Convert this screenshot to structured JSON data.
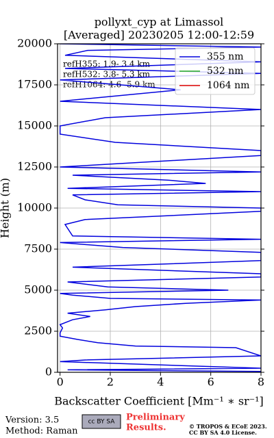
{
  "chart_data": {
    "type": "line",
    "title": [
      "pollyxt_cyp at Limassol",
      "[Averaged] 20230205 12:00-12:59"
    ],
    "x_label": "Backscatter Coefficient [Mm⁻¹ ∗ sr⁻¹]",
    "y_label": "Height (m)",
    "xlim": [
      -0.1,
      8
    ],
    "ylim": [
      0,
      20000
    ],
    "xticks": [
      0,
      2,
      4,
      6,
      8
    ],
    "yticks": [
      0,
      2500,
      5000,
      7500,
      10000,
      12500,
      15000,
      17500,
      20000
    ],
    "grid": true,
    "legend": "upper right",
    "heights": [
      50,
      150,
      250,
      650,
      750,
      1000,
      1500,
      1600,
      1800,
      2000,
      2200,
      2400,
      2700,
      2900,
      3200,
      3400,
      3600,
      3800,
      4000,
      4200,
      4400,
      4500,
      4700,
      4800,
      5000,
      5200,
      5500,
      5800,
      6000,
      6400,
      6800,
      7100,
      7300,
      7600,
      7900,
      8100,
      8300,
      9000,
      9300,
      9800,
      10000,
      10200,
      10500,
      10800,
      11000,
      11200,
      11500,
      11700,
      12000,
      12200,
      12500,
      13200,
      13500,
      14000,
      14500,
      15000,
      15500,
      16000,
      16500,
      17200,
      17800,
      18200,
      18500,
      18900,
      19300,
      19600,
      19800,
      20000
    ],
    "series": [
      {
        "name": "355 nm",
        "color": "#0000dd",
        "values": [
          8,
          0.3,
          8,
          0,
          1,
          8,
          7,
          3,
          1.5,
          0.7,
          0,
          0,
          0.1,
          0,
          0.5,
          1.2,
          0.3,
          1.8,
          3,
          5,
          8,
          2,
          0.5,
          0,
          6.7,
          1.9,
          0.3,
          8,
          8,
          0.5,
          8,
          8,
          8,
          2.5,
          0,
          8,
          0.5,
          0.2,
          1,
          8,
          8,
          2.3,
          1,
          0.5,
          8,
          0.3,
          5.8,
          4.3,
          0.5,
          8,
          0,
          8,
          8,
          2.2,
          0,
          0,
          1.8,
          8,
          0,
          4.8,
          0,
          8,
          0.2,
          8,
          0.2,
          1.1,
          8,
          0
        ]
      },
      {
        "name": "532 nm",
        "color": "#22aa22"
      },
      {
        "name": "1064 nm",
        "color": "#dd0000"
      }
    ],
    "annotations": [
      "refH355:  1.9- 3.4 km",
      "refH532:  3.8- 5.3 km",
      "refH1064:  4.6- 5.9 km"
    ],
    "footer": {
      "version": "Version: 3.5",
      "method": "Method: Raman",
      "license_badge": "cc BY SA",
      "preliminary": [
        "Preliminary",
        "Results."
      ],
      "copyright": [
        "© TROPOS & ECoE 2023.",
        "CC BY SA 4.0 License."
      ]
    }
  }
}
